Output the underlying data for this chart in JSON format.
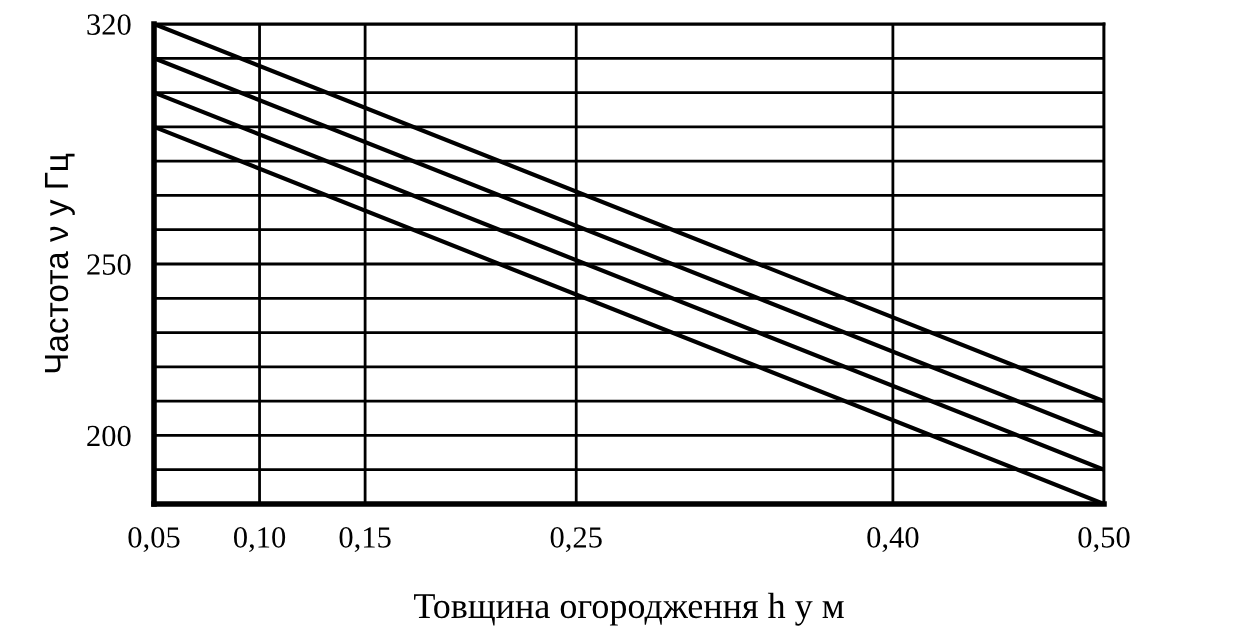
{
  "chart_data": {
    "type": "line",
    "xlabel": "Товщина огородження h у м",
    "ylabel": "Частота ν у Гц",
    "x": [
      0.05,
      0.5
    ],
    "series": [
      {
        "color": "#000000",
        "values": [
          320,
          210
        ]
      },
      {
        "color": "#000000",
        "values": [
          310,
          200
        ]
      },
      {
        "color": "#000000",
        "values": [
          300,
          190
        ]
      },
      {
        "color": "#000000",
        "values": [
          290,
          180
        ]
      }
    ],
    "xlim": [
      0.05,
      0.5
    ],
    "ylim": [
      180,
      320
    ],
    "xticks": [
      {
        "value": 0.05,
        "label": "0,05"
      },
      {
        "value": 0.1,
        "label": "0,10"
      },
      {
        "value": 0.15,
        "label": "0,15"
      },
      {
        "value": 0.25,
        "label": "0,25"
      },
      {
        "value": 0.4,
        "label": "0,40"
      },
      {
        "value": 0.5,
        "label": "0,50"
      }
    ],
    "yticks": [
      {
        "value": 190,
        "label": null
      },
      200,
      {
        "value": 210,
        "label": null
      },
      {
        "value": 220,
        "label": null
      },
      {
        "value": 230,
        "label": null
      },
      {
        "value": 240,
        "label": null
      },
      250,
      {
        "value": 260,
        "label": null
      },
      {
        "value": 270,
        "label": null
      },
      {
        "value": 280,
        "label": null
      },
      {
        "value": 290,
        "label": null
      },
      {
        "value": 300,
        "label": null
      },
      {
        "value": 310,
        "label": null
      },
      320
    ],
    "grid": true,
    "marker": "none",
    "line_style": "solid"
  }
}
